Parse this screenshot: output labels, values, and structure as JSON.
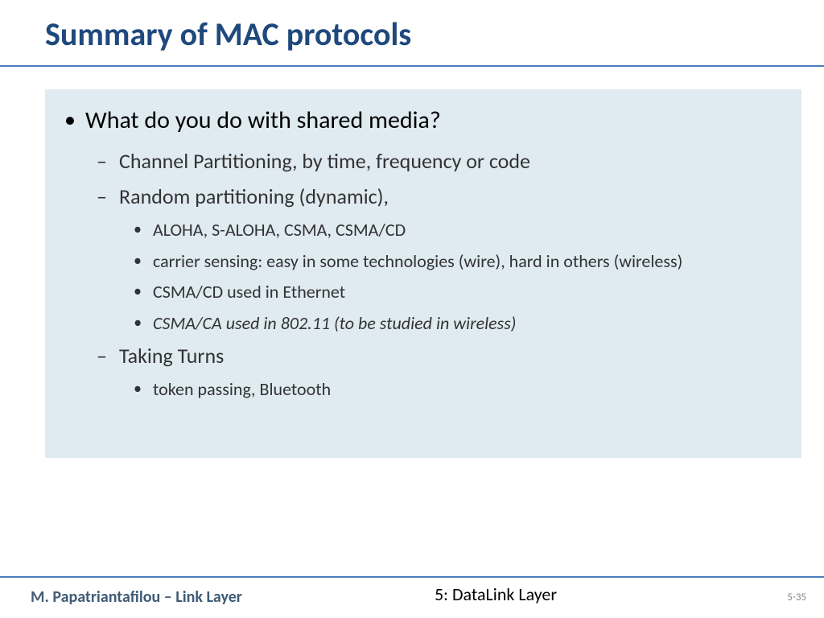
{
  "colors": {
    "title": "#1f497d",
    "underline": "#4a7ebb",
    "content_bg": "#dfeaf1",
    "footer_left": "#415b76"
  },
  "title": "Summary of MAC protocols",
  "l1": "What do you do with shared media?",
  "l2a": "Channel Partitioning, by time, frequency or code",
  "l2b": "Random partitioning (dynamic),",
  "l3a": "ALOHA, S-ALOHA, CSMA, CSMA/CD",
  "l3b": "carrier sensing: easy in some technologies (wire), hard in others (wireless)",
  "l3c": "CSMA/CD used in Ethernet",
  "l3d": "CSMA/CA used in 802.11 (to be studied in wireless)",
  "l2c": "Taking Turns",
  "l3e": "token passing, Bluetooth",
  "footer_left": "M. Papatriantafilou –  Link Layer",
  "footer_center": "5: DataLink Layer",
  "footer_right": "5-35"
}
